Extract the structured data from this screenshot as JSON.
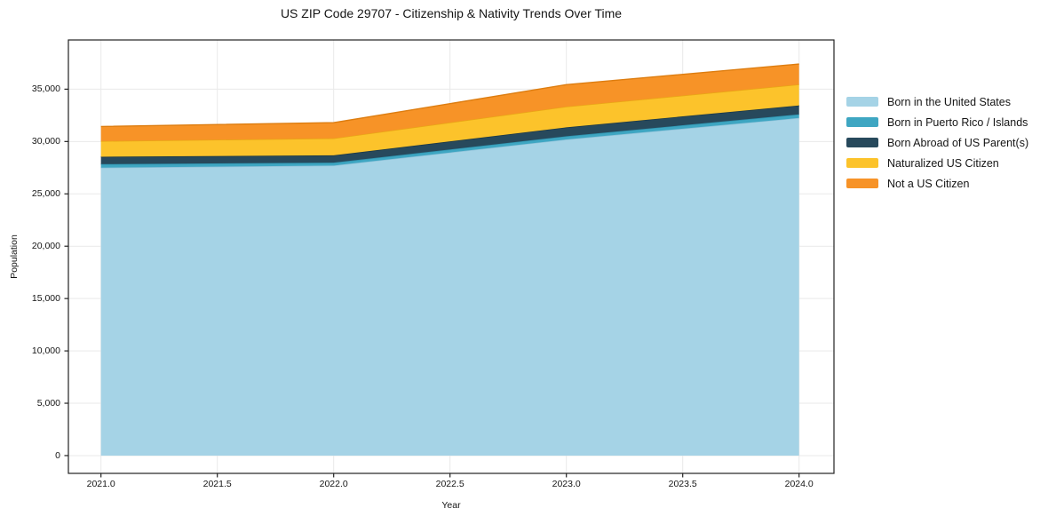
{
  "chart_data": {
    "type": "area",
    "stacked": true,
    "title": "US ZIP Code 29707 - Citizenship & Nativity Trends Over Time",
    "xlabel": "Year",
    "ylabel": "Population",
    "x": [
      2021,
      2022,
      2023,
      2024
    ],
    "series": [
      {
        "name": "Born in the United States",
        "color": "#a5d3e6",
        "edge_color": "#8fc2d9",
        "values": [
          27500,
          27700,
          30200,
          32250
        ]
      },
      {
        "name": "Born in Puerto Rico / Islands",
        "color": "#3ea6c2",
        "edge_color": "#2f93ae",
        "values": [
          340,
          280,
          300,
          350
        ]
      },
      {
        "name": "Born Abroad of US Parent(s)",
        "color": "#27495c",
        "edge_color": "#1a3644",
        "values": [
          700,
          700,
          850,
          850
        ]
      },
      {
        "name": "Naturalized US Citizen",
        "color": "#fcc32b",
        "edge_color": "#e8a714",
        "values": [
          1500,
          1620,
          1980,
          2000
        ]
      },
      {
        "name": "Not a US Citizen",
        "color": "#f79327",
        "edge_color": "#dd7d10",
        "values": [
          1400,
          1500,
          2100,
          1950
        ]
      }
    ],
    "totals_by_year": [
      31440,
      31800,
      35430,
      37400
    ],
    "xlim": [
      2020.86,
      2024.15
    ],
    "ylim": [
      -1700,
      39700
    ],
    "x_ticks": [
      2021.0,
      2021.5,
      2022.0,
      2022.5,
      2023.0,
      2023.5,
      2024.0
    ],
    "x_tick_labels": [
      "2021.0",
      "2021.5",
      "2022.0",
      "2022.5",
      "2023.0",
      "2023.5",
      "2024.0"
    ],
    "y_ticks": [
      0,
      5000,
      10000,
      15000,
      20000,
      25000,
      30000,
      35000
    ],
    "y_tick_labels": [
      "0",
      "5,000",
      "10,000",
      "15,000",
      "20,000",
      "25,000",
      "30,000",
      "35,000"
    ],
    "grid": true,
    "legend_position": "right-outside"
  },
  "colors": {
    "grid": "#e9e9e9",
    "frame": "#222222",
    "tick": "#222222",
    "text": "#151515",
    "background": "#ffffff"
  }
}
